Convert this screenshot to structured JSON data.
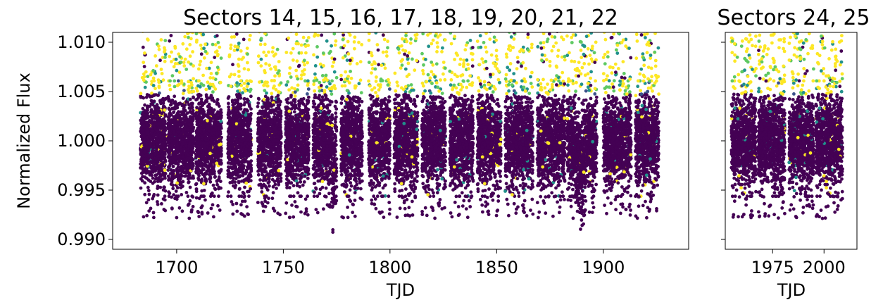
{
  "chart_data": [
    {
      "type": "scatter",
      "title": "Sectors 14, 15, 16, 17, 18, 19, 20, 21, 22",
      "xlabel": "TJD",
      "ylabel": "Normalized Flux",
      "xlim": [
        1670,
        1940
      ],
      "ylim": [
        0.989,
        1.011
      ],
      "xticks": [
        1700,
        1750,
        1800,
        1850,
        1900
      ],
      "xtick_labels": [
        "1700",
        "1750",
        "1800",
        "1850",
        "1900"
      ],
      "yticks": [
        0.99,
        0.995,
        1.0,
        1.005,
        1.01
      ],
      "ytick_labels": [
        "0.990",
        "0.995",
        "1.000",
        "1.005",
        "1.010"
      ],
      "segments": [
        [
          1683,
          1695
        ],
        [
          1696,
          1708
        ],
        [
          1709,
          1721
        ],
        [
          1724,
          1735
        ],
        [
          1738,
          1749
        ],
        [
          1751,
          1762
        ],
        [
          1764,
          1775
        ],
        [
          1777,
          1787
        ],
        [
          1790,
          1800
        ],
        [
          1802,
          1813
        ],
        [
          1815,
          1826
        ],
        [
          1828,
          1839
        ],
        [
          1841,
          1852
        ],
        [
          1854,
          1867
        ],
        [
          1869,
          1882
        ],
        [
          1883,
          1897
        ],
        [
          1900,
          1913
        ],
        [
          1915,
          1926
        ]
      ],
      "baseline": 1.0,
      "scatter_half_range": 0.0045,
      "dip": {
        "x": 1889.5,
        "min_flux": 0.989
      },
      "small_dip": {
        "x": 1773.5,
        "min_flux": 0.9915
      },
      "color_scale": "viridis",
      "grid": false,
      "legend": "none"
    },
    {
      "type": "scatter",
      "title": "Sectors 24, 25",
      "xlabel": "TJD",
      "xlim": [
        1952,
        2016
      ],
      "ylim": [
        0.989,
        1.011
      ],
      "xticks": [
        1975,
        2000
      ],
      "xtick_labels": [
        "1975",
        "2000"
      ],
      "sharey": true,
      "segments": [
        [
          1955,
          1967
        ],
        [
          1968,
          1981
        ],
        [
          1983,
          1995
        ],
        [
          1996,
          2009
        ]
      ],
      "baseline": 1.0,
      "scatter_half_range": 0.0045,
      "color_scale": "viridis",
      "grid": false,
      "legend": "none"
    }
  ],
  "colors": {
    "low_flux": "#440154",
    "mid_low": "#3b528b",
    "mid": "#21918c",
    "mid_high": "#5ec962",
    "high_flux": "#fde725",
    "axis": "#000000",
    "background": "#ffffff"
  }
}
